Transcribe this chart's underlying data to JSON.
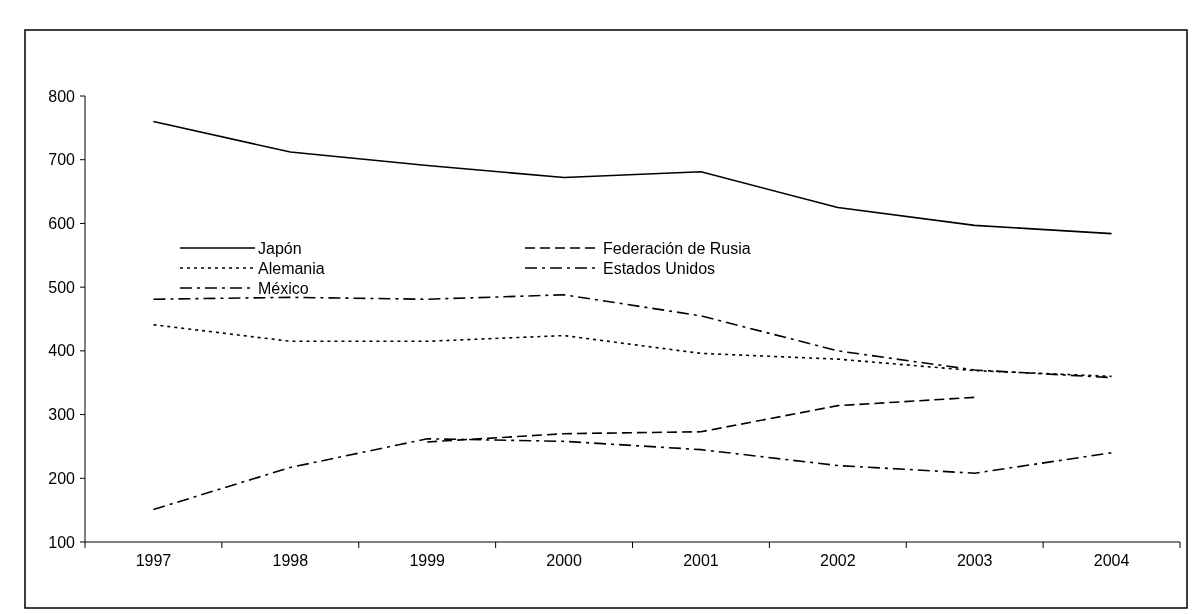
{
  "chart_data": {
    "type": "line",
    "categories": [
      "1997",
      "1998",
      "1999",
      "2000",
      "2001",
      "2002",
      "2003",
      "2004"
    ],
    "ylim": [
      100,
      800
    ],
    "yticks": [
      100,
      200,
      300,
      400,
      500,
      600,
      700,
      800
    ],
    "grid": false,
    "legend": "left",
    "marker": "none",
    "series": [
      {
        "name": "Japón",
        "color": "#000000",
        "line_style": "solid",
        "values": [
          760,
          712,
          691,
          672,
          681,
          625,
          597,
          584
        ]
      },
      {
        "name": "Federación de Rusia",
        "color": "#000000",
        "line_style": "dashed",
        "values": [
          null,
          null,
          257,
          270,
          273,
          314,
          327,
          null
        ]
      },
      {
        "name": "Alemania",
        "color": "#000000",
        "line_style": "dotted",
        "values": [
          441,
          415,
          415,
          424,
          396,
          387,
          369,
          360
        ]
      },
      {
        "name": "Estados Unidos",
        "color": "#000000",
        "line_style": "dashdot",
        "values": [
          151,
          217,
          262,
          258,
          245,
          220,
          208,
          240
        ]
      },
      {
        "name": "México",
        "color": "#000000",
        "line_style": "dashdot",
        "values": [
          481,
          484,
          481,
          488,
          455,
          400,
          370,
          358
        ]
      }
    ]
  }
}
